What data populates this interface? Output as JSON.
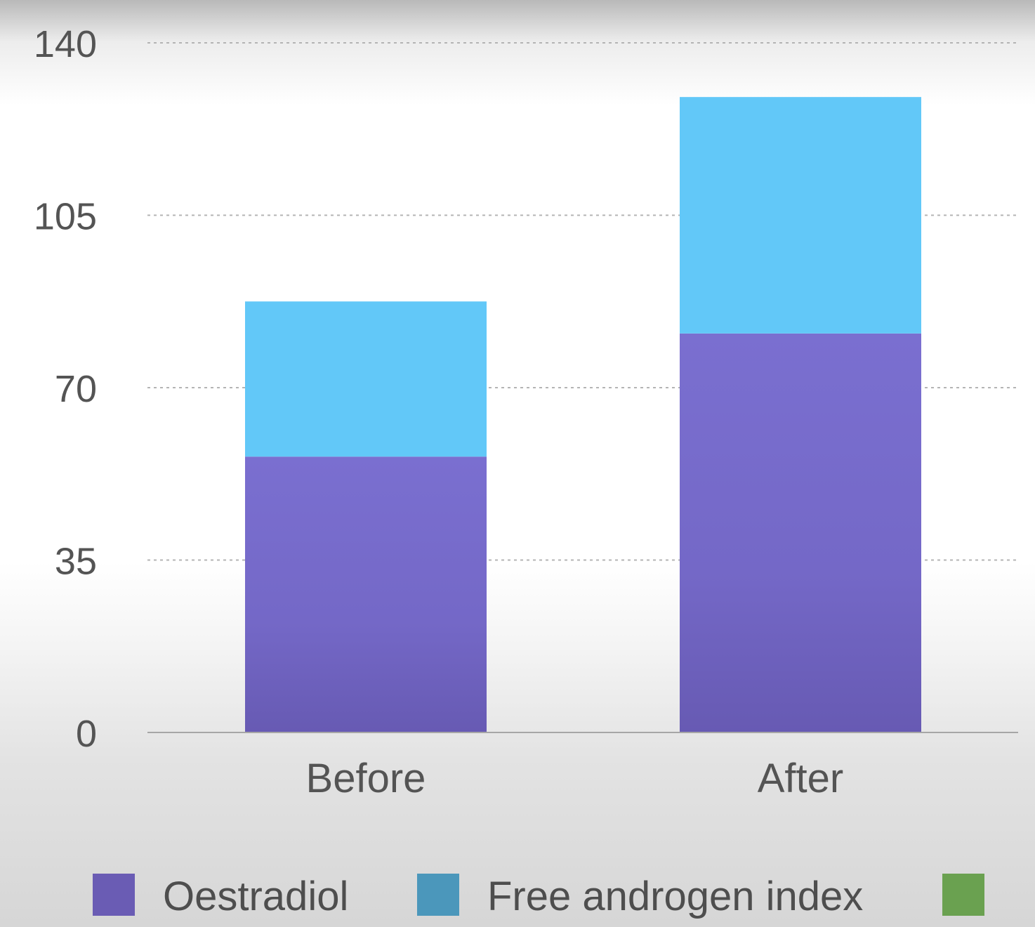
{
  "chart_data": {
    "type": "bar",
    "stacked": true,
    "categories": [
      "Before",
      "After"
    ],
    "series": [
      {
        "name": "Oestradiol",
        "values": [
          56,
          81
        ],
        "color": "#7b70cf"
      },
      {
        "name": "Free androgen index",
        "values": [
          31.5,
          48
        ],
        "color": "#62c8f8"
      },
      {
        "name": "",
        "values": [
          0,
          0
        ],
        "color": "#6aa150"
      }
    ],
    "legend_swatches": [
      "#6a5cb4",
      "#4b97bb",
      "#6aa150"
    ],
    "yticks": [
      "0",
      "35",
      "70",
      "105",
      "140"
    ],
    "ylim": [
      0,
      140
    ],
    "grid": true,
    "grid_style": "dotted",
    "legend_position": "bottom",
    "title": "",
    "xlabel": "",
    "ylabel": ""
  }
}
